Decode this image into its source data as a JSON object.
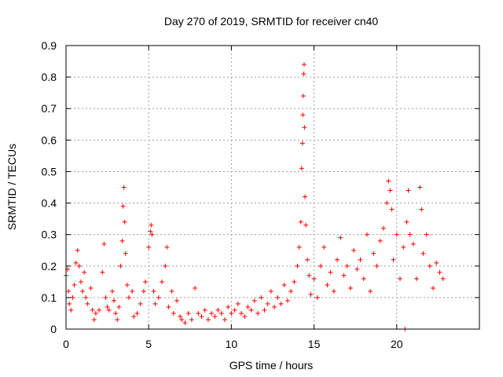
{
  "chart_data": {
    "type": "scatter",
    "title": "Day 270 of 2019, SRMTID for receiver cn40",
    "xlabel": "GPS time / hours",
    "ylabel": "SRMTID / TECUs",
    "xlim": [
      0,
      25
    ],
    "ylim": [
      0,
      0.9
    ],
    "xticks": [
      0,
      5,
      10,
      15,
      20
    ],
    "yticks": [
      0,
      0.1,
      0.2,
      0.3,
      0.4,
      0.5,
      0.6,
      0.7,
      0.8,
      0.9
    ],
    "grid": true,
    "marker": "+",
    "color": "#ff0000",
    "series": [
      {
        "name": "SRMTID",
        "points": [
          [
            0.0,
            0.17
          ],
          [
            0.1,
            0.19
          ],
          [
            0.15,
            0.12
          ],
          [
            0.2,
            0.08
          ],
          [
            0.3,
            0.06
          ],
          [
            0.4,
            0.1
          ],
          [
            0.5,
            0.14
          ],
          [
            0.6,
            0.21
          ],
          [
            0.7,
            0.25
          ],
          [
            0.8,
            0.2
          ],
          [
            0.9,
            0.15
          ],
          [
            1.0,
            0.12
          ],
          [
            1.1,
            0.18
          ],
          [
            1.2,
            0.1
          ],
          [
            1.3,
            0.08
          ],
          [
            1.5,
            0.13
          ],
          [
            1.6,
            0.06
          ],
          [
            1.7,
            0.03
          ],
          [
            1.8,
            0.05
          ],
          [
            2.0,
            0.06
          ],
          [
            2.2,
            0.18
          ],
          [
            2.3,
            0.27
          ],
          [
            2.4,
            0.1
          ],
          [
            2.5,
            0.07
          ],
          [
            2.6,
            0.06
          ],
          [
            2.8,
            0.12
          ],
          [
            2.9,
            0.09
          ],
          [
            3.0,
            0.05
          ],
          [
            3.1,
            0.03
          ],
          [
            3.2,
            0.07
          ],
          [
            3.3,
            0.2
          ],
          [
            3.4,
            0.28
          ],
          [
            3.45,
            0.39
          ],
          [
            3.5,
            0.45
          ],
          [
            3.55,
            0.34
          ],
          [
            3.6,
            0.24
          ],
          [
            3.7,
            0.14
          ],
          [
            3.8,
            0.1
          ],
          [
            4.0,
            0.12
          ],
          [
            4.1,
            0.04
          ],
          [
            4.3,
            0.05
          ],
          [
            4.5,
            0.08
          ],
          [
            4.7,
            0.12
          ],
          [
            4.8,
            0.15
          ],
          [
            5.0,
            0.26
          ],
          [
            5.1,
            0.31
          ],
          [
            5.15,
            0.33
          ],
          [
            5.2,
            0.3
          ],
          [
            5.3,
            0.12
          ],
          [
            5.4,
            0.08
          ],
          [
            5.6,
            0.1
          ],
          [
            5.8,
            0.15
          ],
          [
            6.0,
            0.2
          ],
          [
            6.1,
            0.26
          ],
          [
            6.2,
            0.07
          ],
          [
            6.4,
            0.12
          ],
          [
            6.5,
            0.05
          ],
          [
            6.7,
            0.09
          ],
          [
            6.9,
            0.04
          ],
          [
            7.0,
            0.03
          ],
          [
            7.2,
            0.02
          ],
          [
            7.4,
            0.05
          ],
          [
            7.6,
            0.03
          ],
          [
            7.8,
            0.13
          ],
          [
            8.0,
            0.05
          ],
          [
            8.2,
            0.04
          ],
          [
            8.4,
            0.06
          ],
          [
            8.6,
            0.03
          ],
          [
            8.8,
            0.05
          ],
          [
            9.0,
            0.04
          ],
          [
            9.2,
            0.06
          ],
          [
            9.4,
            0.05
          ],
          [
            9.6,
            0.03
          ],
          [
            9.8,
            0.07
          ],
          [
            10.0,
            0.05
          ],
          [
            10.2,
            0.06
          ],
          [
            10.4,
            0.08
          ],
          [
            10.6,
            0.05
          ],
          [
            10.8,
            0.04
          ],
          [
            11.0,
            0.07
          ],
          [
            11.2,
            0.06
          ],
          [
            11.4,
            0.09
          ],
          [
            11.6,
            0.05
          ],
          [
            11.8,
            0.1
          ],
          [
            12.0,
            0.06
          ],
          [
            12.2,
            0.08
          ],
          [
            12.4,
            0.12
          ],
          [
            12.6,
            0.07
          ],
          [
            12.8,
            0.1
          ],
          [
            13.0,
            0.08
          ],
          [
            13.2,
            0.14
          ],
          [
            13.4,
            0.09
          ],
          [
            13.6,
            0.12
          ],
          [
            13.8,
            0.15
          ],
          [
            14.0,
            0.2
          ],
          [
            14.1,
            0.26
          ],
          [
            14.2,
            0.34
          ],
          [
            14.25,
            0.51
          ],
          [
            14.3,
            0.59
          ],
          [
            14.32,
            0.68
          ],
          [
            14.35,
            0.74
          ],
          [
            14.38,
            0.81
          ],
          [
            14.4,
            0.84
          ],
          [
            14.42,
            0.64
          ],
          [
            14.45,
            0.42
          ],
          [
            14.5,
            0.33
          ],
          [
            14.6,
            0.22
          ],
          [
            14.7,
            0.17
          ],
          [
            14.8,
            0.11
          ],
          [
            15.0,
            0.16
          ],
          [
            15.2,
            0.1
          ],
          [
            15.4,
            0.2
          ],
          [
            15.6,
            0.26
          ],
          [
            15.8,
            0.14
          ],
          [
            16.0,
            0.18
          ],
          [
            16.2,
            0.12
          ],
          [
            16.4,
            0.22
          ],
          [
            16.6,
            0.29
          ],
          [
            16.8,
            0.17
          ],
          [
            17.0,
            0.2
          ],
          [
            17.2,
            0.13
          ],
          [
            17.4,
            0.25
          ],
          [
            17.6,
            0.19
          ],
          [
            17.8,
            0.22
          ],
          [
            18.0,
            0.16
          ],
          [
            18.2,
            0.3
          ],
          [
            18.4,
            0.12
          ],
          [
            18.6,
            0.24
          ],
          [
            18.8,
            0.2
          ],
          [
            19.0,
            0.28
          ],
          [
            19.2,
            0.32
          ],
          [
            19.4,
            0.4
          ],
          [
            19.5,
            0.47
          ],
          [
            19.6,
            0.44
          ],
          [
            19.7,
            0.38
          ],
          [
            19.8,
            0.22
          ],
          [
            20.0,
            0.3
          ],
          [
            20.2,
            0.16
          ],
          [
            20.4,
            0.26
          ],
          [
            20.5,
            0.0
          ],
          [
            20.6,
            0.34
          ],
          [
            20.7,
            0.44
          ],
          [
            20.8,
            0.3
          ],
          [
            21.0,
            0.27
          ],
          [
            21.2,
            0.16
          ],
          [
            21.4,
            0.45
          ],
          [
            21.5,
            0.38
          ],
          [
            21.6,
            0.24
          ],
          [
            21.8,
            0.3
          ],
          [
            22.0,
            0.2
          ],
          [
            22.2,
            0.13
          ],
          [
            22.4,
            0.21
          ],
          [
            22.6,
            0.18
          ],
          [
            22.8,
            0.16
          ]
        ]
      }
    ]
  }
}
